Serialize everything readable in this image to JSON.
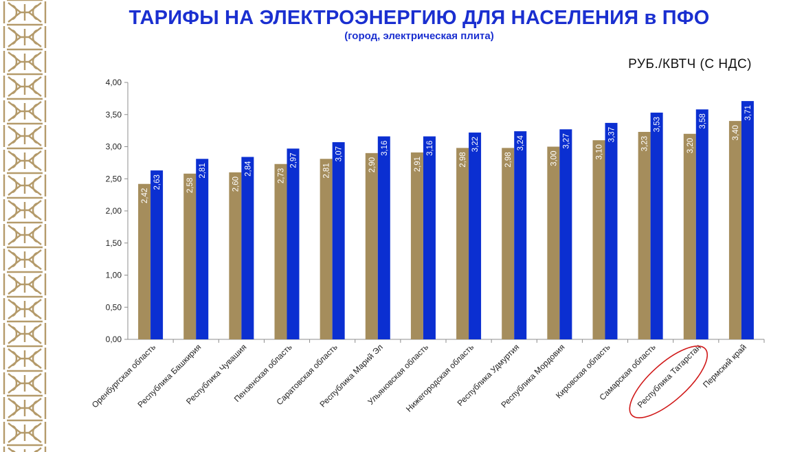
{
  "title": "ТАРИФЫ НА ЭЛЕКТРОЭНЕРГИЮ ДЛЯ НАСЕЛЕНИЯ в ПФО",
  "subtitle": "(город, электрическая плита)",
  "unit": "РУБ./КВТЧ (С НДС)",
  "colors": {
    "series1": "#a58d5c",
    "series2": "#0b2fd1",
    "title": "#1a2fd0",
    "highlight": "#d01818"
  },
  "chart_data": {
    "type": "bar",
    "title": "ТАРИФЫ НА ЭЛЕКТРОЭНЕРГИЮ ДЛЯ НАСЕЛЕНИЯ в ПФО",
    "subtitle": "(город, электрическая плита)",
    "ylabel": "РУБ./КВТЧ (С НДС)",
    "ylim": [
      0,
      4
    ],
    "yticks": [
      "0,00",
      "0,50",
      "1,00",
      "1,50",
      "2,00",
      "2,50",
      "3,00",
      "3,50",
      "4,00"
    ],
    "grid": false,
    "categories": [
      "Оренбургская область",
      "Республика Башкирия",
      "Республика Чувашия",
      "Пензенская область",
      "Саратовская область",
      "Республика Марий Эл",
      "Ульяновская область",
      "Нижегородская область",
      "Республика Удмуртия",
      "Республика Мордовия",
      "Кировская область",
      "Самарская область",
      "Республика Татарстан",
      "Пермский край"
    ],
    "series": [
      {
        "values": [
          2.42,
          2.58,
          2.6,
          2.73,
          2.81,
          2.9,
          2.91,
          2.98,
          2.98,
          3.0,
          3.1,
          3.23,
          3.2,
          3.4
        ],
        "labels": [
          "2,42",
          "2,58",
          "2,60",
          "2,73",
          "2,81",
          "2,90",
          "2,91",
          "2,98",
          "2,98",
          "3,00",
          "3,10",
          "3,23",
          "3,20",
          "3,40"
        ]
      },
      {
        "values": [
          2.63,
          2.81,
          2.84,
          2.97,
          3.07,
          3.16,
          3.16,
          3.22,
          3.24,
          3.27,
          3.37,
          3.53,
          3.58,
          3.71
        ],
        "labels": [
          "2,63",
          "2,81",
          "2,84",
          "2,97",
          "3,07",
          "3,16",
          "3,16",
          "3,22",
          "3,24",
          "3,27",
          "3,37",
          "3,53",
          "3,58",
          "3,71"
        ]
      }
    ],
    "highlighted_category": "Республика Татарстан"
  }
}
